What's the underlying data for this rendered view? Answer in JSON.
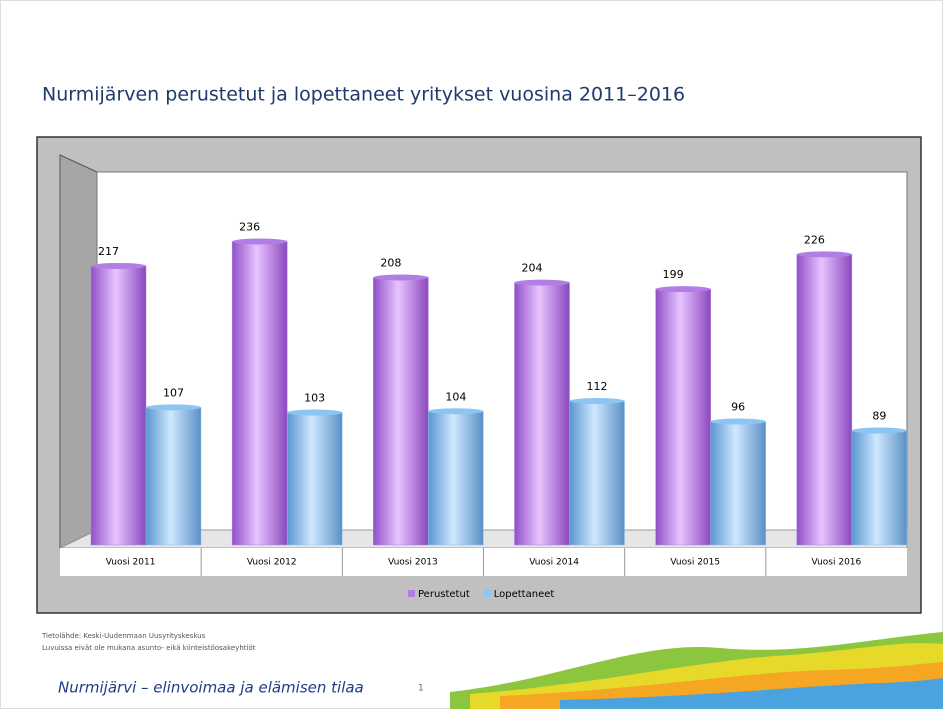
{
  "chart_data": {
    "type": "bar",
    "title": "Nurmijärven perustetut ja lopettaneet yritykset vuosina 2011–2016",
    "categories": [
      "Vuosi 2011",
      "Vuosi 2012",
      "Vuosi 2013",
      "Vuosi 2014",
      "Vuosi 2015",
      "Vuosi 2016"
    ],
    "series": [
      {
        "name": "Perustetut",
        "color": "#b27ee6",
        "values": [
          217,
          236,
          208,
          204,
          199,
          226
        ]
      },
      {
        "name": "Lopettaneet",
        "color": "#8cc4f2",
        "values": [
          107,
          103,
          104,
          112,
          96,
          89
        ]
      }
    ],
    "legend": "bottom"
  },
  "footnotes": [
    "Tietolähde: Keski-Uudenmaan Uusyrityskeskus",
    "Luvuissa eivät ole mukana asunto- eikä kiinteistöosakeyhtiöt"
  ],
  "footer": {
    "slogan": "Nurmijärvi – elinvoimaa ja elämisen tilaa",
    "page_number": 1
  }
}
